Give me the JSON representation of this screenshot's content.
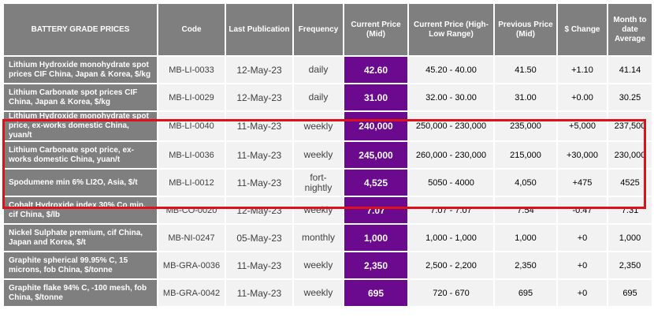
{
  "headers": {
    "name": "BATTERY GRADE PRICES",
    "code": "Code",
    "last_pub": "Last Publication",
    "frequency": "Frequency",
    "current": "Current Price (Mid)",
    "range": "Current Price (High-Low Range)",
    "previous": "Previous Price (Mid)",
    "change": "$ Change",
    "mtd": "Month to date Average"
  },
  "rows": [
    {
      "name": "Lithium Hydroxide monohydrate spot prices CIF China, Japan & Korea, $/kg",
      "code": "MB-LI-0033",
      "last_pub": "12-May-23",
      "frequency": "daily",
      "current": "42.60",
      "range": "45.20 - 40.00",
      "previous": "41.50",
      "change": "+1.10",
      "mtd": "41.14"
    },
    {
      "name": "Lithium Carbonate spot prices CIF China, Japan & Korea, $/kg",
      "code": "MB-LI-0029",
      "last_pub": "12-May-23",
      "frequency": "daily",
      "current": "31.00",
      "range": "32.00 - 30.00",
      "previous": "31.00",
      "change": "+0.00",
      "mtd": "30.25"
    },
    {
      "name": "Lithium Hydroxide monohydrate spot price, ex-works domestic China, yuan/t",
      "code": "MB-LI-0040",
      "last_pub": "11-May-23",
      "frequency": "weekly",
      "current": "240,000",
      "range": "250,000 - 230,000",
      "previous": "235,000",
      "change": "+5,000",
      "mtd": "237,500"
    },
    {
      "name": "Lithium Carbonate spot price, ex-works domestic China, yuan/t",
      "code": "MB-LI-0036",
      "last_pub": "11-May-23",
      "frequency": "weekly",
      "current": "245,000",
      "range": "260,000 - 230,000",
      "previous": "215,000",
      "change": "+30,000",
      "mtd": "230,000"
    },
    {
      "name": "Spodumene min 6% LI2O, Asia, $/t",
      "code": "MB-LI-0012",
      "last_pub": "11-May-23",
      "frequency": "fort-nightly",
      "current": "4,525",
      "range": "5050 - 4000",
      "previous": "4,050",
      "change": "+475",
      "mtd": "4525"
    },
    {
      "name": "Cobalt Hydroxide index 30% Co min, cif China, $/lb",
      "code": "MB-CO-0020",
      "last_pub": "12-May-23",
      "frequency": "weekly",
      "current": "7.07",
      "range": "7.07 - 7.07",
      "previous": "7.54",
      "change": "-0.47",
      "mtd": "7.31"
    },
    {
      "name": "Nickel Sulphate premium, cif China, Japan and Korea, $/t",
      "code": "MB-NI-0247",
      "last_pub": "05-May-23",
      "frequency": "monthly",
      "current": "1,000",
      "range": "1,000 - 1,000",
      "previous": "1,000",
      "change": "+0",
      "mtd": "1,000"
    },
    {
      "name": "Graphite spherical 99.95% C, 15 microns, fob China, $/tonne",
      "code": "MB-GRA-0036",
      "last_pub": "11-May-23",
      "frequency": "weekly",
      "current": "2,350",
      "range": "2,500 - 2,200",
      "previous": "2,350",
      "change": "+0",
      "mtd": "2,350"
    },
    {
      "name": "Graphite flake 94% C, -100 mesh, fob China, $/tonne",
      "code": "MB-GRA-0042",
      "last_pub": "11-May-23",
      "frequency": "weekly",
      "current": "695",
      "range": "720 - 670",
      "previous": "695",
      "change": "+0",
      "mtd": "695"
    }
  ],
  "colors": {
    "header_gray": "#7f7f7f",
    "current_price_purple": "#6b0a8f",
    "highlight_red": "#e0101a"
  }
}
